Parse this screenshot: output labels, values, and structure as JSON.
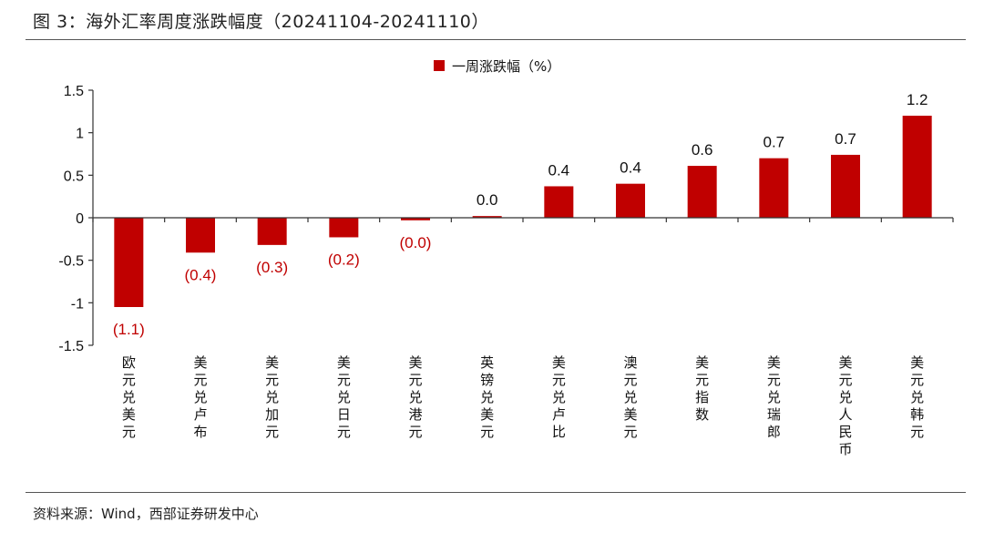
{
  "figure": {
    "title": "图 3：海外汇率周度涨跌幅度（20241104-20241110）",
    "source": "资料来源：Wind，西部证券研发中心"
  },
  "colors": {
    "bar": "#C00000",
    "negative_label": "#C00000",
    "positive_label": "#111111",
    "axis": "#333333"
  },
  "chart_data": {
    "type": "bar",
    "categories": [
      "欧元兑美元",
      "美元兑卢布",
      "美元兑加元",
      "美元兑日元",
      "美元兑港元",
      "英镑兑美元",
      "美元兑卢比",
      "澳元兑美元",
      "美元指数",
      "美元兑瑞郎",
      "美元兑人民币",
      "美元兑韩元"
    ],
    "series": [
      {
        "name": "一周涨跌幅（%）",
        "values": [
          -1.05,
          -0.41,
          -0.32,
          -0.23,
          -0.03,
          0.02,
          0.37,
          0.4,
          0.61,
          0.7,
          0.74,
          1.2
        ],
        "data_labels": [
          "(1.1)",
          "(0.4)",
          "(0.3)",
          "(0.2)",
          "(0.0)",
          "0.0",
          "0.4",
          "0.4",
          "0.6",
          "0.7",
          "0.7",
          "1.2"
        ]
      }
    ],
    "yticks": [
      "1.5",
      "1",
      "0.5",
      "0",
      "-0.5",
      "-1",
      "-1.5"
    ],
    "ylim": [
      -1.5,
      1.5
    ],
    "grid": false,
    "legend_position": "top-center"
  }
}
